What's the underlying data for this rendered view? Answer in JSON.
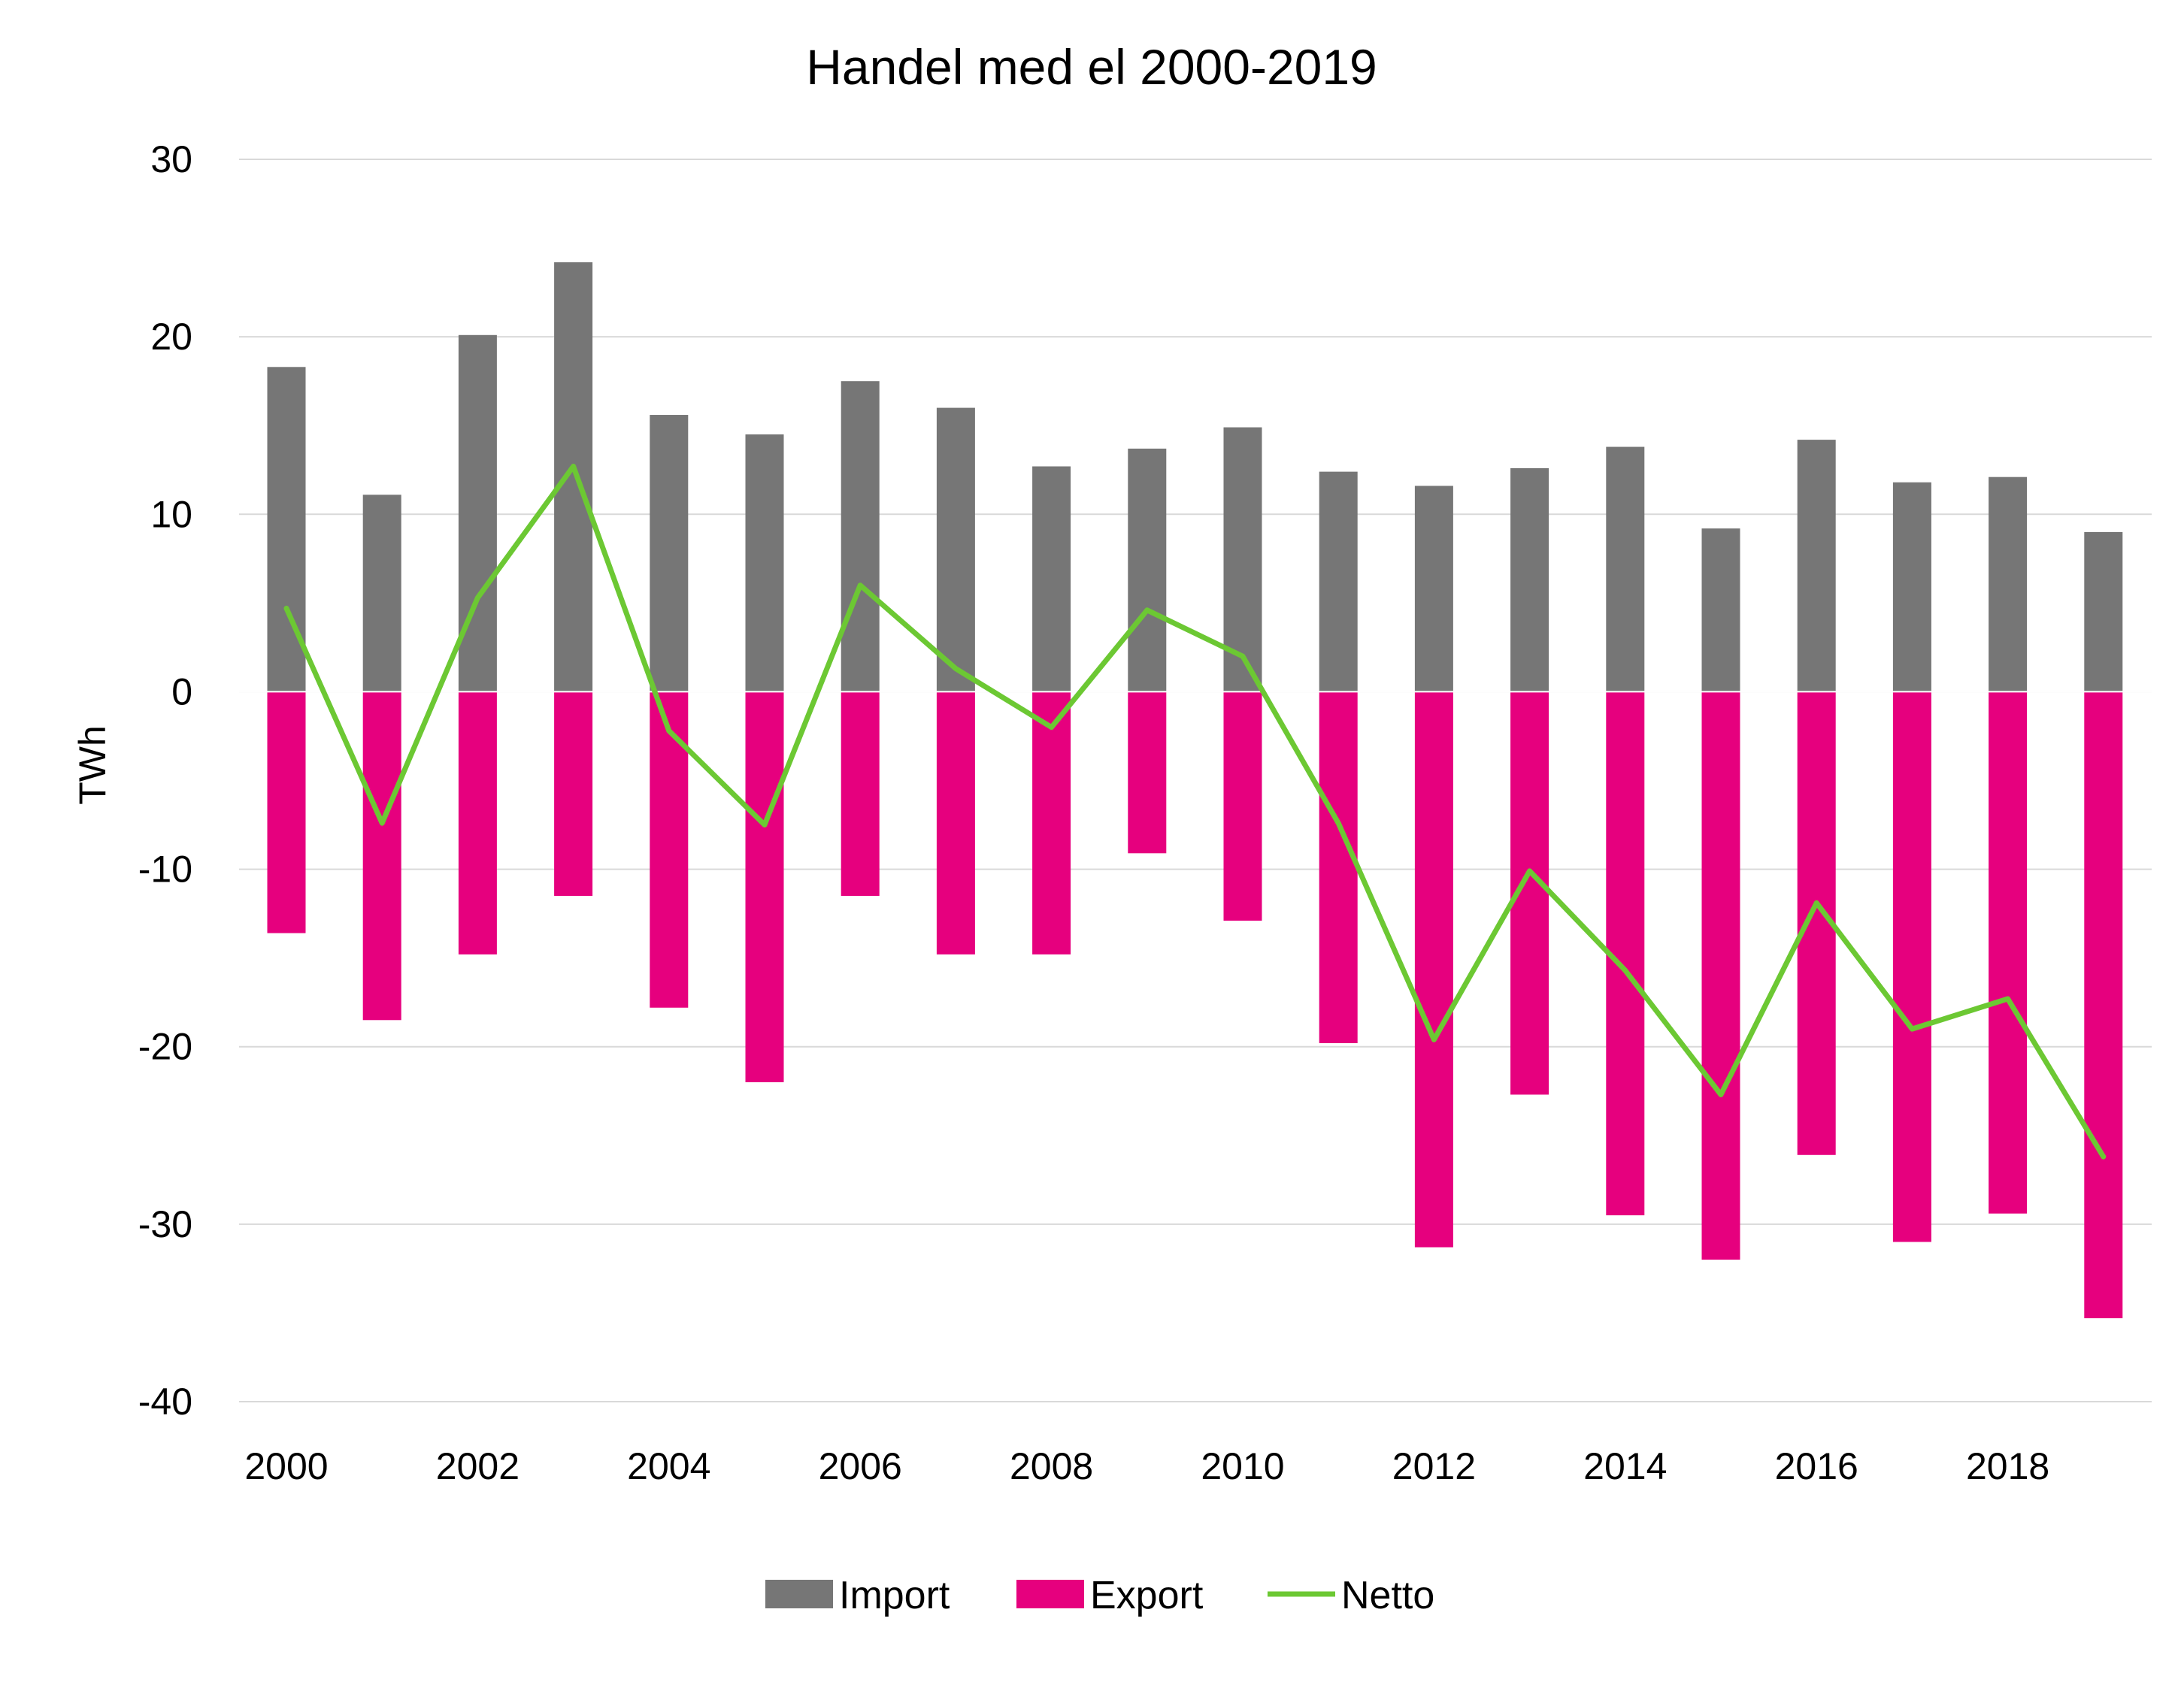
{
  "chart_data": {
    "type": "bar",
    "title": "Handel med el 2000-2019",
    "xlabel": "",
    "ylabel": "TWh",
    "ylim": [
      -40,
      30
    ],
    "yticks": [
      30,
      20,
      10,
      0,
      -10,
      -20,
      -30,
      -40
    ],
    "ytick_labels": [
      "30",
      "20",
      "10",
      "0",
      "-10",
      "-20",
      "-30",
      "-40"
    ],
    "xtick_labels": [
      "2000",
      "2002",
      "2004",
      "2006",
      "2008",
      "2010",
      "2012",
      "2014",
      "2016",
      "2018"
    ],
    "categories": [
      "2000",
      "2001",
      "2002",
      "2003",
      "2004",
      "2005",
      "2006",
      "2007",
      "2008",
      "2009",
      "2010",
      "2011",
      "2012",
      "2013",
      "2014",
      "2015",
      "2016",
      "2017",
      "2018",
      "2019"
    ],
    "grid": true,
    "legend_position": "bottom",
    "series": [
      {
        "name": "Import",
        "kind": "bar",
        "color": "#767676",
        "values": [
          18.3,
          11.1,
          20.1,
          24.2,
          15.6,
          14.5,
          17.5,
          16.0,
          12.7,
          13.7,
          14.9,
          12.4,
          11.6,
          12.6,
          13.8,
          9.2,
          14.2,
          11.8,
          12.1,
          9.0
        ]
      },
      {
        "name": "Export",
        "kind": "bar",
        "color": "#E6007E",
        "values": [
          -13.6,
          -18.5,
          -14.8,
          -11.5,
          -17.8,
          -22.0,
          -11.5,
          -14.8,
          -14.8,
          -9.1,
          -12.9,
          -19.8,
          -31.3,
          -22.7,
          -29.5,
          -32.0,
          -26.1,
          -31.0,
          -29.4,
          -35.3
        ]
      },
      {
        "name": "Netto",
        "kind": "line",
        "color": "#6CC833",
        "values": [
          4.7,
          -7.4,
          5.3,
          12.7,
          -2.2,
          -7.5,
          6.0,
          1.3,
          -2.0,
          4.6,
          2.0,
          -7.4,
          -19.6,
          -10.1,
          -15.7,
          -22.7,
          -11.9,
          -19.0,
          -17.3,
          -26.2
        ]
      }
    ]
  }
}
